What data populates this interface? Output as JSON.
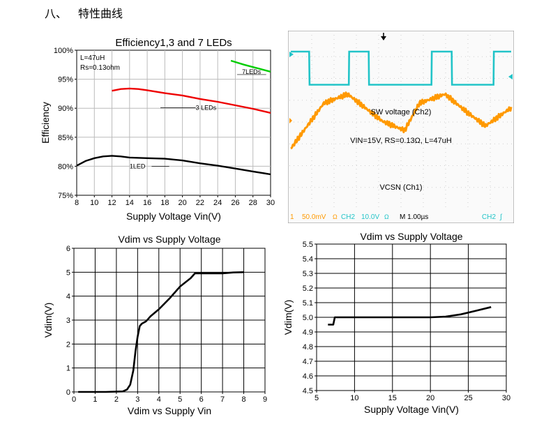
{
  "heading": {
    "number": "八、",
    "title": "特性曲线"
  },
  "chart_data": [
    {
      "type": "line",
      "title": "Efficiency1,3 and 7 LEDs",
      "xlabel": "Supply Voltage Vin(V)",
      "ylabel": "Efficiency",
      "xlim": [
        8,
        30
      ],
      "ylim": [
        75,
        100
      ],
      "xticks": [
        "8",
        "10",
        "12",
        "14",
        "16",
        "18",
        "20",
        "22",
        "24",
        "26",
        "28",
        "30"
      ],
      "yticks": [
        "75%",
        "80%",
        "85%",
        "90%",
        "95%",
        "100%"
      ],
      "grid": true,
      "annotations": [
        "L=47uH",
        "Rs=0.13ohm"
      ],
      "series": [
        {
          "name": "7LEDs",
          "color": "#00cc00",
          "x": [
            25.5,
            27,
            28.5,
            30
          ],
          "y": [
            98.2,
            97.5,
            96.9,
            96.3
          ]
        },
        {
          "name": "3 LEDs",
          "color": "#ee0000",
          "x": [
            12,
            13,
            14,
            15,
            16,
            18,
            20,
            22,
            24,
            26,
            28,
            30
          ],
          "y": [
            93.0,
            93.3,
            93.4,
            93.3,
            93.1,
            92.6,
            92.2,
            91.6,
            91.1,
            90.5,
            89.9,
            89.2
          ]
        },
        {
          "name": "1LED",
          "color": "#000000",
          "x": [
            8,
            9,
            10,
            11,
            12,
            13,
            14,
            16,
            18,
            20,
            22,
            24,
            26,
            28,
            30
          ],
          "y": [
            80.1,
            80.9,
            81.4,
            81.7,
            81.8,
            81.7,
            81.5,
            81.4,
            81.3,
            81.0,
            80.5,
            80.1,
            79.6,
            79.1,
            78.6
          ]
        }
      ]
    },
    {
      "type": "line",
      "title": "",
      "texts": [
        "SW voltage (Ch2)",
        "VIN=15V, RS=0.13Ω, L=47uH",
        "VCSN (Ch1)"
      ],
      "status": [
        "1",
        "50.0mV",
        "Ω",
        "CH2",
        "10.0V",
        "Ω",
        "M 1.00µs",
        "CH2",
        "∫"
      ],
      "series": [
        {
          "name": "SW voltage (Ch2)",
          "color": "#22c4c8",
          "x": [
            0.0,
            0.5,
            0.51,
            1.58,
            1.59,
            2.12,
            2.13,
            3.83,
            3.84,
            4.38,
            4.39,
            5.52,
            5.53,
            6.0
          ],
          "y": [
            10.0,
            10.0,
            0.5,
            0.5,
            10.0,
            10.0,
            0.5,
            0.5,
            10.0,
            10.0,
            0.5,
            0.5,
            10.0,
            10.0
          ]
        },
        {
          "name": "VCSN (Ch1)",
          "color": "#ff9900",
          "x": [
            0.0,
            0.9,
            1.55,
            2.5,
            3.1,
            3.5,
            4.2,
            4.8,
            5.3,
            6.0
          ],
          "y": [
            -95,
            -45,
            -35,
            -65,
            -75,
            -45,
            -35,
            -55,
            -70,
            -50
          ]
        }
      ]
    },
    {
      "type": "line",
      "title": "Vdim vs Supply Voltage",
      "xlabel": "Vdim vs Supply Vin",
      "ylabel": "Vdim(V)",
      "xlim": [
        0,
        9
      ],
      "ylim": [
        0,
        6
      ],
      "xticks": [
        "0",
        "1",
        "2",
        "3",
        "4",
        "5",
        "6",
        "7",
        "8",
        "9"
      ],
      "yticks": [
        "0",
        "1",
        "2",
        "3",
        "4",
        "5",
        "6"
      ],
      "grid": true,
      "series": [
        {
          "name": "",
          "color": "#000000",
          "x": [
            0.2,
            1.5,
            2.3,
            2.5,
            2.65,
            2.8,
            2.9,
            3.0,
            3.1,
            3.2,
            3.4,
            3.6,
            4.0,
            4.5,
            5.0,
            5.5,
            5.7,
            6.0,
            6.5,
            7.0,
            7.5,
            8.0
          ],
          "y": [
            0.0,
            0.0,
            0.02,
            0.1,
            0.3,
            0.9,
            1.7,
            2.3,
            2.75,
            2.85,
            2.95,
            3.15,
            3.45,
            3.9,
            4.4,
            4.75,
            4.95,
            4.95,
            4.95,
            4.95,
            4.99,
            5.0
          ]
        }
      ]
    },
    {
      "type": "line",
      "title": "Vdim vs Supply Voltage",
      "xlabel": "Supply Voltage Vin(V)",
      "ylabel": "Vdim(V)",
      "xlim": [
        5,
        30
      ],
      "ylim": [
        4.5,
        5.5
      ],
      "xticks": [
        "5",
        "10",
        "15",
        "20",
        "25",
        "30"
      ],
      "yticks": [
        "4.5",
        "4.6",
        "4.7",
        "4.8",
        "4.9",
        "5.0",
        "5.1",
        "5.2",
        "5.3",
        "5.4",
        "5.5"
      ],
      "grid": true,
      "series": [
        {
          "name": "",
          "color": "#000000",
          "x": [
            6.5,
            7.2,
            7.4,
            8.0,
            10,
            15,
            20,
            22,
            24,
            26,
            28
          ],
          "y": [
            4.95,
            4.95,
            5.0,
            5.0,
            5.0,
            5.0,
            5.0,
            5.005,
            5.02,
            5.045,
            5.07
          ]
        }
      ]
    }
  ]
}
